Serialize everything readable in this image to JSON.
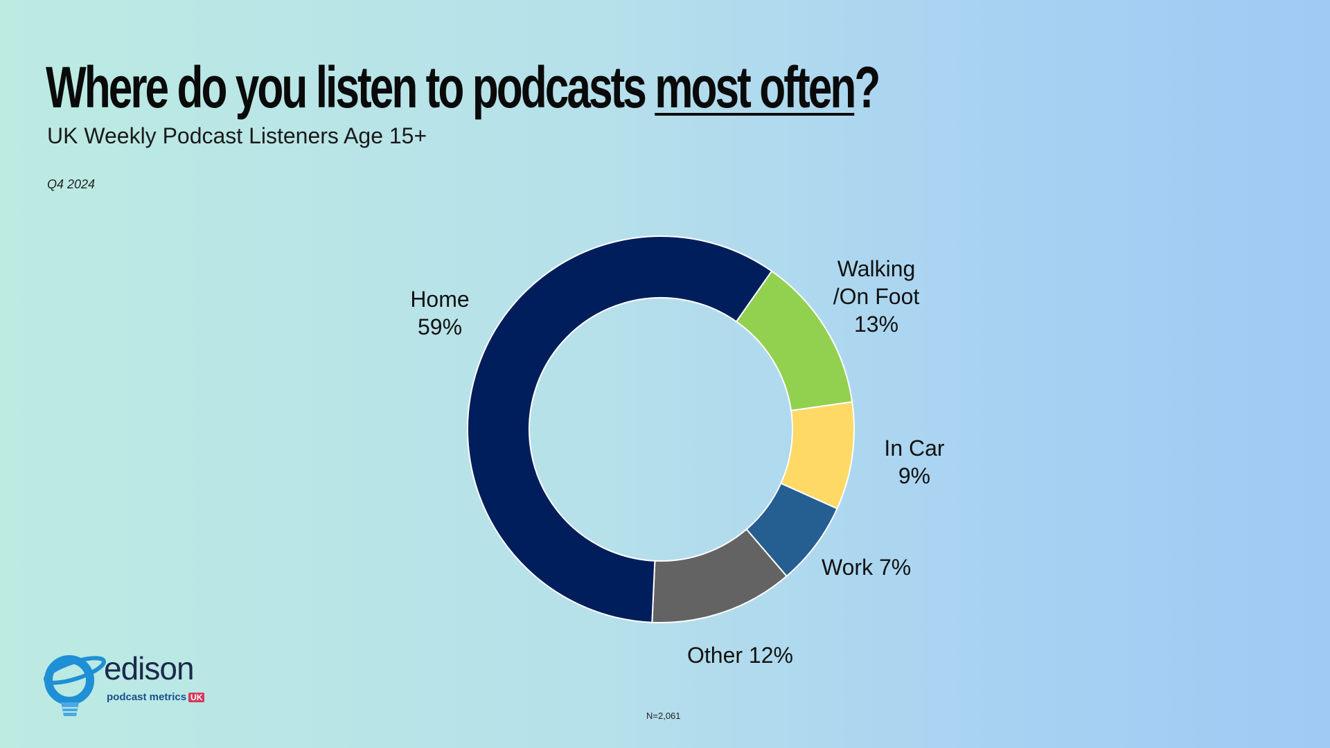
{
  "header": {
    "title_pre": "Where do you listen to podcasts ",
    "title_em": "most often",
    "title_post": "?",
    "subtitle": "UK Weekly Podcast Listeners Age 15+",
    "period": "Q4 2024"
  },
  "footer": {
    "sample_size": "N=2,061"
  },
  "brand": {
    "name": "edison",
    "tagline": "podcast metrics",
    "region": "UK"
  },
  "labels": {
    "home_name": "Home",
    "home_value": "59%",
    "walking_line1": "Walking",
    "walking_line2": "/On Foot",
    "walking_value": "13%",
    "car_name": "In Car",
    "car_value": "9%",
    "work": "Work 7%",
    "other": "Other 12%"
  },
  "chart_data": {
    "type": "pie",
    "variant": "donut",
    "title": "Where do you listen to podcasts most often?",
    "subtitle": "UK Weekly Podcast Listeners Age 15+",
    "slices": [
      {
        "label": "Home",
        "value": 59,
        "color": "#011e5c"
      },
      {
        "label": "Walking /On Foot",
        "value": 13,
        "color": "#92d050"
      },
      {
        "label": "In Car",
        "value": 9,
        "color": "#ffd966"
      },
      {
        "label": "Work",
        "value": 7,
        "color": "#255e91"
      },
      {
        "label": "Other",
        "value": 12,
        "color": "#636363"
      }
    ],
    "order": [
      "Walking /On Foot",
      "In Car",
      "Work",
      "Other",
      "Home"
    ],
    "unit": "%"
  }
}
